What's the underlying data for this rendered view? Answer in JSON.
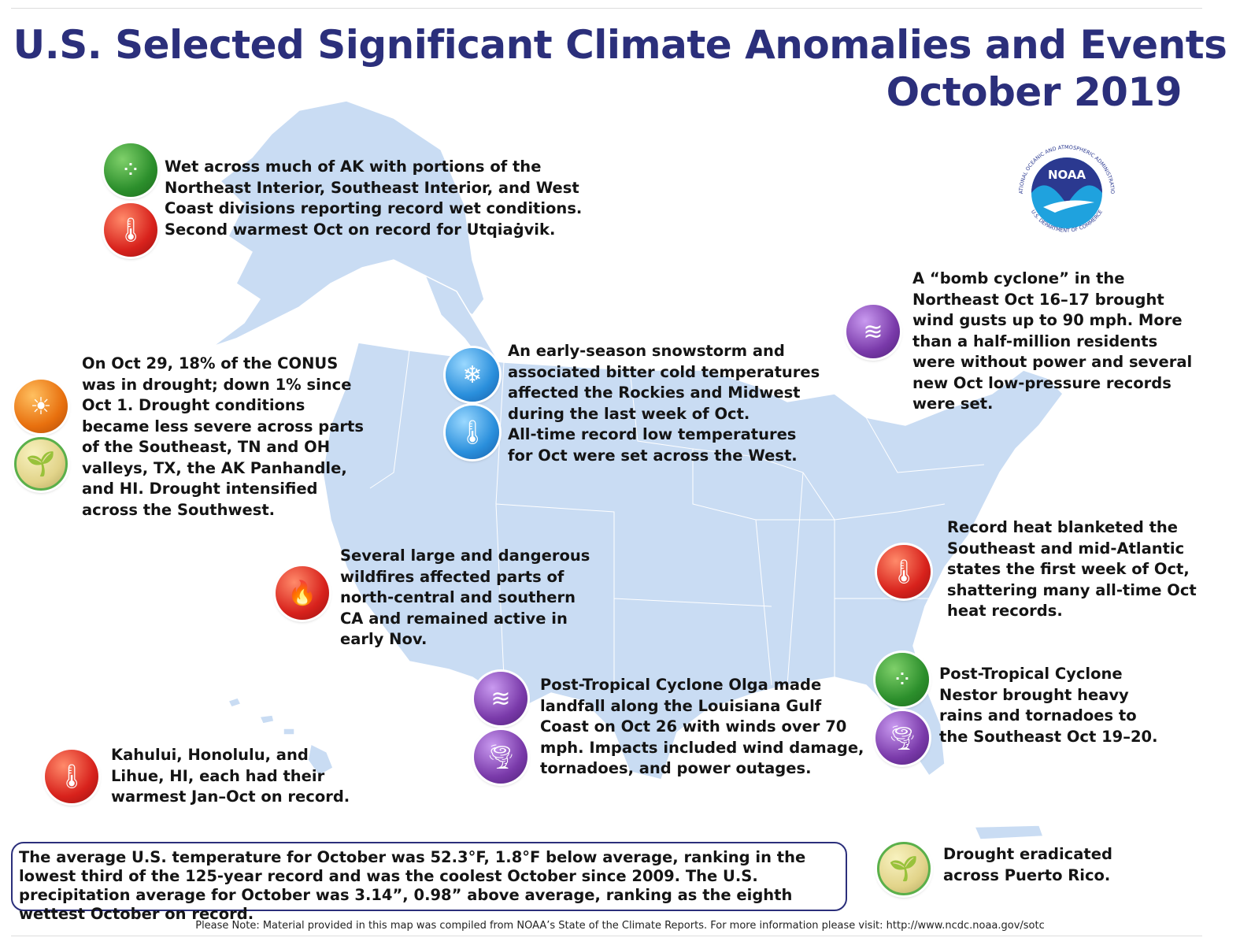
{
  "title": "U.S. Selected Significant Climate Anomalies and Events",
  "subtitle": "October 2019",
  "logo": {
    "text": "NOAA",
    "ring_top": "NATIONAL OCEANIC AND ATMOSPHERIC ADMINISTRATION",
    "ring_bottom": "U.S. DEPARTMENT OF COMMERCE"
  },
  "colors": {
    "title": "#2b2f7b",
    "land": "#c9dcf3",
    "noaa_dark": "#2b3990",
    "noaa_light": "#1fa2de"
  },
  "events": [
    {
      "region": "Alaska",
      "icons": [
        "rain-icon",
        "heat-icon"
      ],
      "text": "Wet across much of AK with portions of the\nNortheast Interior, Southeast Interior, and West\nCoast divisions reporting record wet conditions.\nSecond warmest Oct on record for Utqiaġvik."
    },
    {
      "region": "CONUS drought",
      "icons": [
        "drought-icon",
        "drought-relief-icon"
      ],
      "text": "On Oct 29, 18% of the CONUS\nwas in drought; down 1% since\nOct 1. Drought conditions\nbecame less severe across parts\nof the Southeast, TN and OH\nvalleys, TX, the AK Panhandle,\nand HI. Drought intensified\nacross the Southwest."
    },
    {
      "region": "Rockies and Midwest",
      "icons": [
        "snowflake-icon",
        "cold-thermometer-icon"
      ],
      "text": "An early-season snowstorm and\nassociated bitter cold temperatures\naffected the Rockies and Midwest\nduring the last week of Oct.\nAll-time record low temperatures\nfor Oct were set across the West."
    },
    {
      "region": "Northeast",
      "icons": [
        "wind-icon"
      ],
      "text": "A “bomb cyclone” in the\nNortheast Oct 16–17 brought\nwind gusts up to 90 mph. More\nthan a half-million residents\nwere without power and several\nnew Oct low-pressure records\nwere set."
    },
    {
      "region": "California",
      "icons": [
        "wildfire-icon"
      ],
      "text": "Several large and dangerous\nwildfires affected parts of\nnorth-central and southern\nCA and remained active in\nearly Nov."
    },
    {
      "region": "Southeast heat",
      "icons": [
        "heat-icon"
      ],
      "text": "Record heat blanketed the\nSoutheast and mid-Atlantic\nstates the first week of Oct,\nshattering many all-time Oct\nheat records."
    },
    {
      "region": "Louisiana",
      "icons": [
        "wind-icon",
        "tornado-icon"
      ],
      "text": "Post-Tropical Cyclone Olga made\nlandfall along the Louisiana Gulf\nCoast on Oct 26 with winds over 70\nmph. Impacts included wind damage,\ntornadoes, and power outages."
    },
    {
      "region": "Southeast Nestor",
      "icons": [
        "rain-icon",
        "tornado-icon"
      ],
      "text": "Post-Tropical Cyclone\nNestor brought heavy\nrains and tornadoes to\nthe Southeast Oct 19–20."
    },
    {
      "region": "Hawaii",
      "icons": [
        "heat-icon"
      ],
      "text": "Kahului, Honolulu, and\nLihue, HI, each had their\nwarmest Jan–Oct on record."
    },
    {
      "region": "Puerto Rico",
      "icons": [
        "drought-relief-icon"
      ],
      "text": "Drought eradicated\nacross Puerto Rico."
    }
  ],
  "summary": "The average U.S. temperature for October was 52.3°F, 1.8°F below average, ranking in the lowest third of the 125-year record and was the coolest October since 2009. The U.S. precipitation average for October was 3.14”, 0.98” above average, ranking as the eighth wettest October on record.",
  "note": "Please Note: Material provided in this map was compiled from NOAA’s State of the Climate Reports. For more information please visit: http://www.ncdc.noaa.gov/sotc"
}
